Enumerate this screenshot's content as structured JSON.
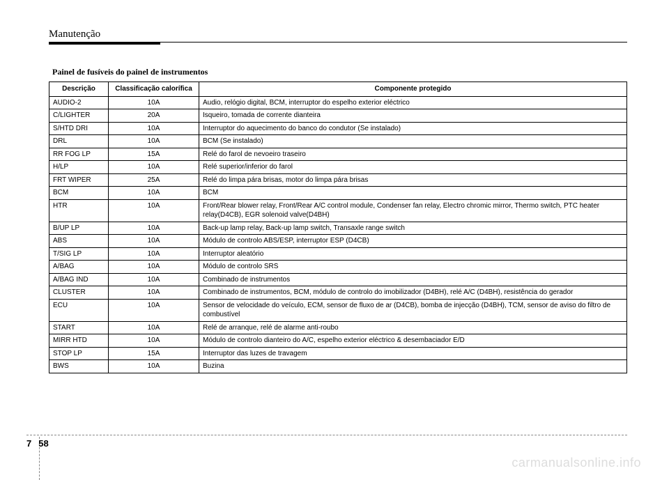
{
  "header": {
    "title": "Manutenção"
  },
  "tableTitle": "Painel de fusíveis do painel de instrumentos",
  "columns": [
    "Descrição",
    "Classificação calorífica",
    "Componente protegido"
  ],
  "rows": [
    [
      "AUDIO-2",
      "10A",
      "Audio, relógio digital, BCM, interruptor do espelho exterior eléctrico"
    ],
    [
      "C/LIGHTER",
      "20A",
      "Isqueiro, tomada de corrente dianteira"
    ],
    [
      "S/HTD DRI",
      "10A",
      "Interruptor do aquecimento do banco do condutor (Se instalado)"
    ],
    [
      "DRL",
      "10A",
      "BCM (Se instalado)"
    ],
    [
      "RR FOG LP",
      "15A",
      "Relé do farol de nevoeiro traseiro"
    ],
    [
      "H/LP",
      "10A",
      "Relé superior/inferior do farol"
    ],
    [
      "FRT WIPER",
      "25A",
      "Relé do limpa pára brisas, motor do limpa pára brisas"
    ],
    [
      "BCM",
      "10A",
      "BCM"
    ],
    [
      "HTR",
      "10A",
      "Front/Rear blower relay, Front/Rear A/C control module, Condenser fan relay, Electro chromic mirror, Thermo switch, PTC heater relay(D4CB), EGR solenoid valve(D4BH)"
    ],
    [
      "B/UP LP",
      "10A",
      "Back-up lamp relay, Back-up lamp switch, Transaxle range switch"
    ],
    [
      "ABS",
      "10A",
      "Módulo de controlo ABS/ESP, interruptor ESP (D4CB)"
    ],
    [
      "T/SIG LP",
      "10A",
      "Interruptor aleatório"
    ],
    [
      "A/BAG",
      "10A",
      "Módulo de controlo SRS"
    ],
    [
      "A/BAG IND",
      "10A",
      "Combinado de instrumentos"
    ],
    [
      "CLUSTER",
      "10A",
      "Combinado de instrumentos, BCM, módulo de controlo do imobilizador (D4BH), relé A/C (D4BH), resistência do gerador"
    ],
    [
      "ECU",
      "10A",
      "Sensor de velocidade do veículo, ECM, sensor de fluxo de ar (D4CB), bomba de injecção (D4BH), TCM, sensor de aviso do filtro de combustível"
    ],
    [
      "START",
      "10A",
      "Relé de arranque, relé de alarme anti-roubo"
    ],
    [
      "MIRR HTD",
      "10A",
      "Módulo de controlo dianteiro do A/C, espelho exterior eléctrico & desembaciador E/D"
    ],
    [
      "STOP LP",
      "15A",
      "Interruptor das luzes de travagem"
    ],
    [
      "BWS",
      "10A",
      "Buzina"
    ]
  ],
  "footer": {
    "section": "7",
    "page": "58"
  },
  "watermark": "carmanualsonline.info"
}
